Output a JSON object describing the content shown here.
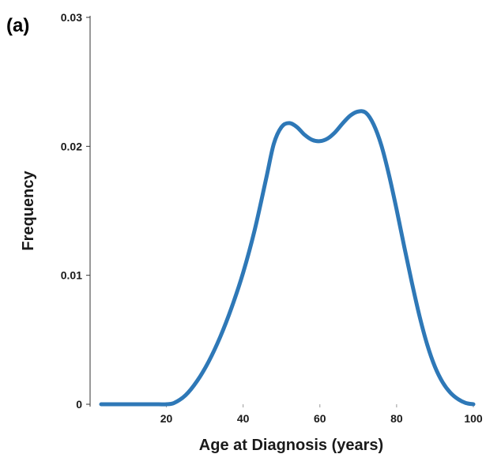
{
  "panel_label": "(a)",
  "chart_data": {
    "type": "line",
    "title": "",
    "xlabel": "Age at Diagnosis (years)",
    "ylabel": "Frequency",
    "xlim": [
      0,
      100
    ],
    "ylim": [
      0,
      0.03
    ],
    "xticks": [
      {
        "value": 20,
        "label": "20"
      },
      {
        "value": 40,
        "label": "40"
      },
      {
        "value": 60,
        "label": "60"
      },
      {
        "value": 80,
        "label": "80"
      },
      {
        "value": 100,
        "label": "100"
      }
    ],
    "yticks": [
      {
        "value": 0,
        "label": "0"
      },
      {
        "value": 0.01,
        "label": "0.01"
      },
      {
        "value": 0.02,
        "label": "0.02"
      },
      {
        "value": 0.03,
        "label": "0.03"
      }
    ],
    "grid": false,
    "legend": "none",
    "line_color": "#2e78b7",
    "series": [
      {
        "x": [
          0,
          5,
          10,
          15,
          18,
          20,
          22,
          25,
          28,
          31,
          34,
          37,
          40,
          43,
          46,
          48,
          50,
          52,
          54,
          56,
          58,
          60,
          62,
          64,
          66,
          68,
          70,
          72,
          74,
          76,
          78,
          80,
          82,
          84,
          86,
          88,
          90,
          92,
          94,
          96,
          98,
          100
        ],
        "y": [
          0,
          0,
          0,
          0,
          0,
          0,
          0.0001,
          0.0007,
          0.0018,
          0.0033,
          0.0052,
          0.0075,
          0.0102,
          0.0135,
          0.0175,
          0.0202,
          0.0215,
          0.0218,
          0.0215,
          0.0209,
          0.0205,
          0.0204,
          0.0206,
          0.0211,
          0.0218,
          0.0224,
          0.0227,
          0.0226,
          0.0217,
          0.0201,
          0.0178,
          0.0151,
          0.0122,
          0.0094,
          0.0068,
          0.0046,
          0.0029,
          0.0017,
          0.0009,
          0.0004,
          0.0001,
          0.0
        ]
      }
    ]
  }
}
